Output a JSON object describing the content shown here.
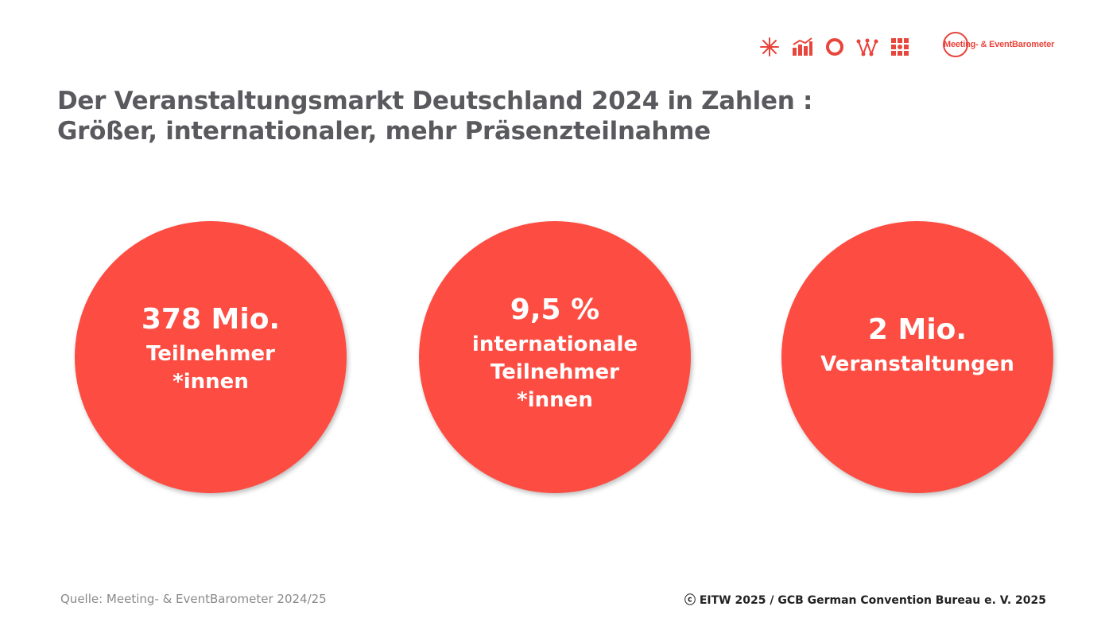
{
  "title": {
    "line1": "Der Veranstaltungsmarkt Deutschland 2024 in Zahlen :",
    "line2": "Größer, internationaler, mehr Präsenzteilnahme"
  },
  "logo": {
    "text": "Meeting- & EventBarometer"
  },
  "header_icons": [
    "asterisk-burst-icon",
    "bar-chart-icon",
    "ring-icon",
    "network-icon",
    "grid-nodes-icon"
  ],
  "stats": [
    {
      "value": "378 Mio.",
      "label_lines": [
        "Teilnehmer",
        "*innen"
      ]
    },
    {
      "value": "9,5 %",
      "label_lines": [
        "internationale",
        "Teilnehmer",
        "*innen"
      ]
    },
    {
      "value": "2 Mio.",
      "label_lines": [
        "Veranstaltungen"
      ]
    }
  ],
  "footer": {
    "source": "Quelle: Meeting- & EventBarometer 2024/25",
    "copyright": "ⓒ EITW 2025 / GCB German Convention Bureau e. V. 2025"
  },
  "colors": {
    "accent": "#fd4c42",
    "title": "#5a5a5e"
  }
}
